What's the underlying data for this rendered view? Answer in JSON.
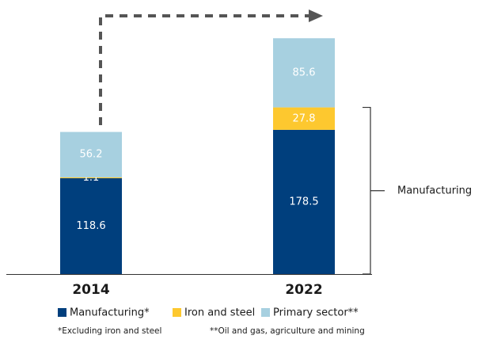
{
  "chart_data": {
    "type": "stacked_bar",
    "categories": [
      "2014",
      "2022"
    ],
    "series": [
      {
        "name": "Manufacturing*",
        "color": "#003f7d",
        "values": [
          118.6,
          178.5
        ]
      },
      {
        "name": "Iron and steel",
        "color": "#fdc82f",
        "values": [
          1.1,
          27.8
        ]
      },
      {
        "name": "Primary sector**",
        "color": "#a7d0e0",
        "values": [
          56.2,
          85.6
        ]
      }
    ],
    "ylim": [
      0,
      300
    ],
    "annotations": [
      "Manufacturing"
    ],
    "footnotes": [
      "*Excluding iron and steel",
      "**Oil and gas, agriculture and mining"
    ]
  }
}
